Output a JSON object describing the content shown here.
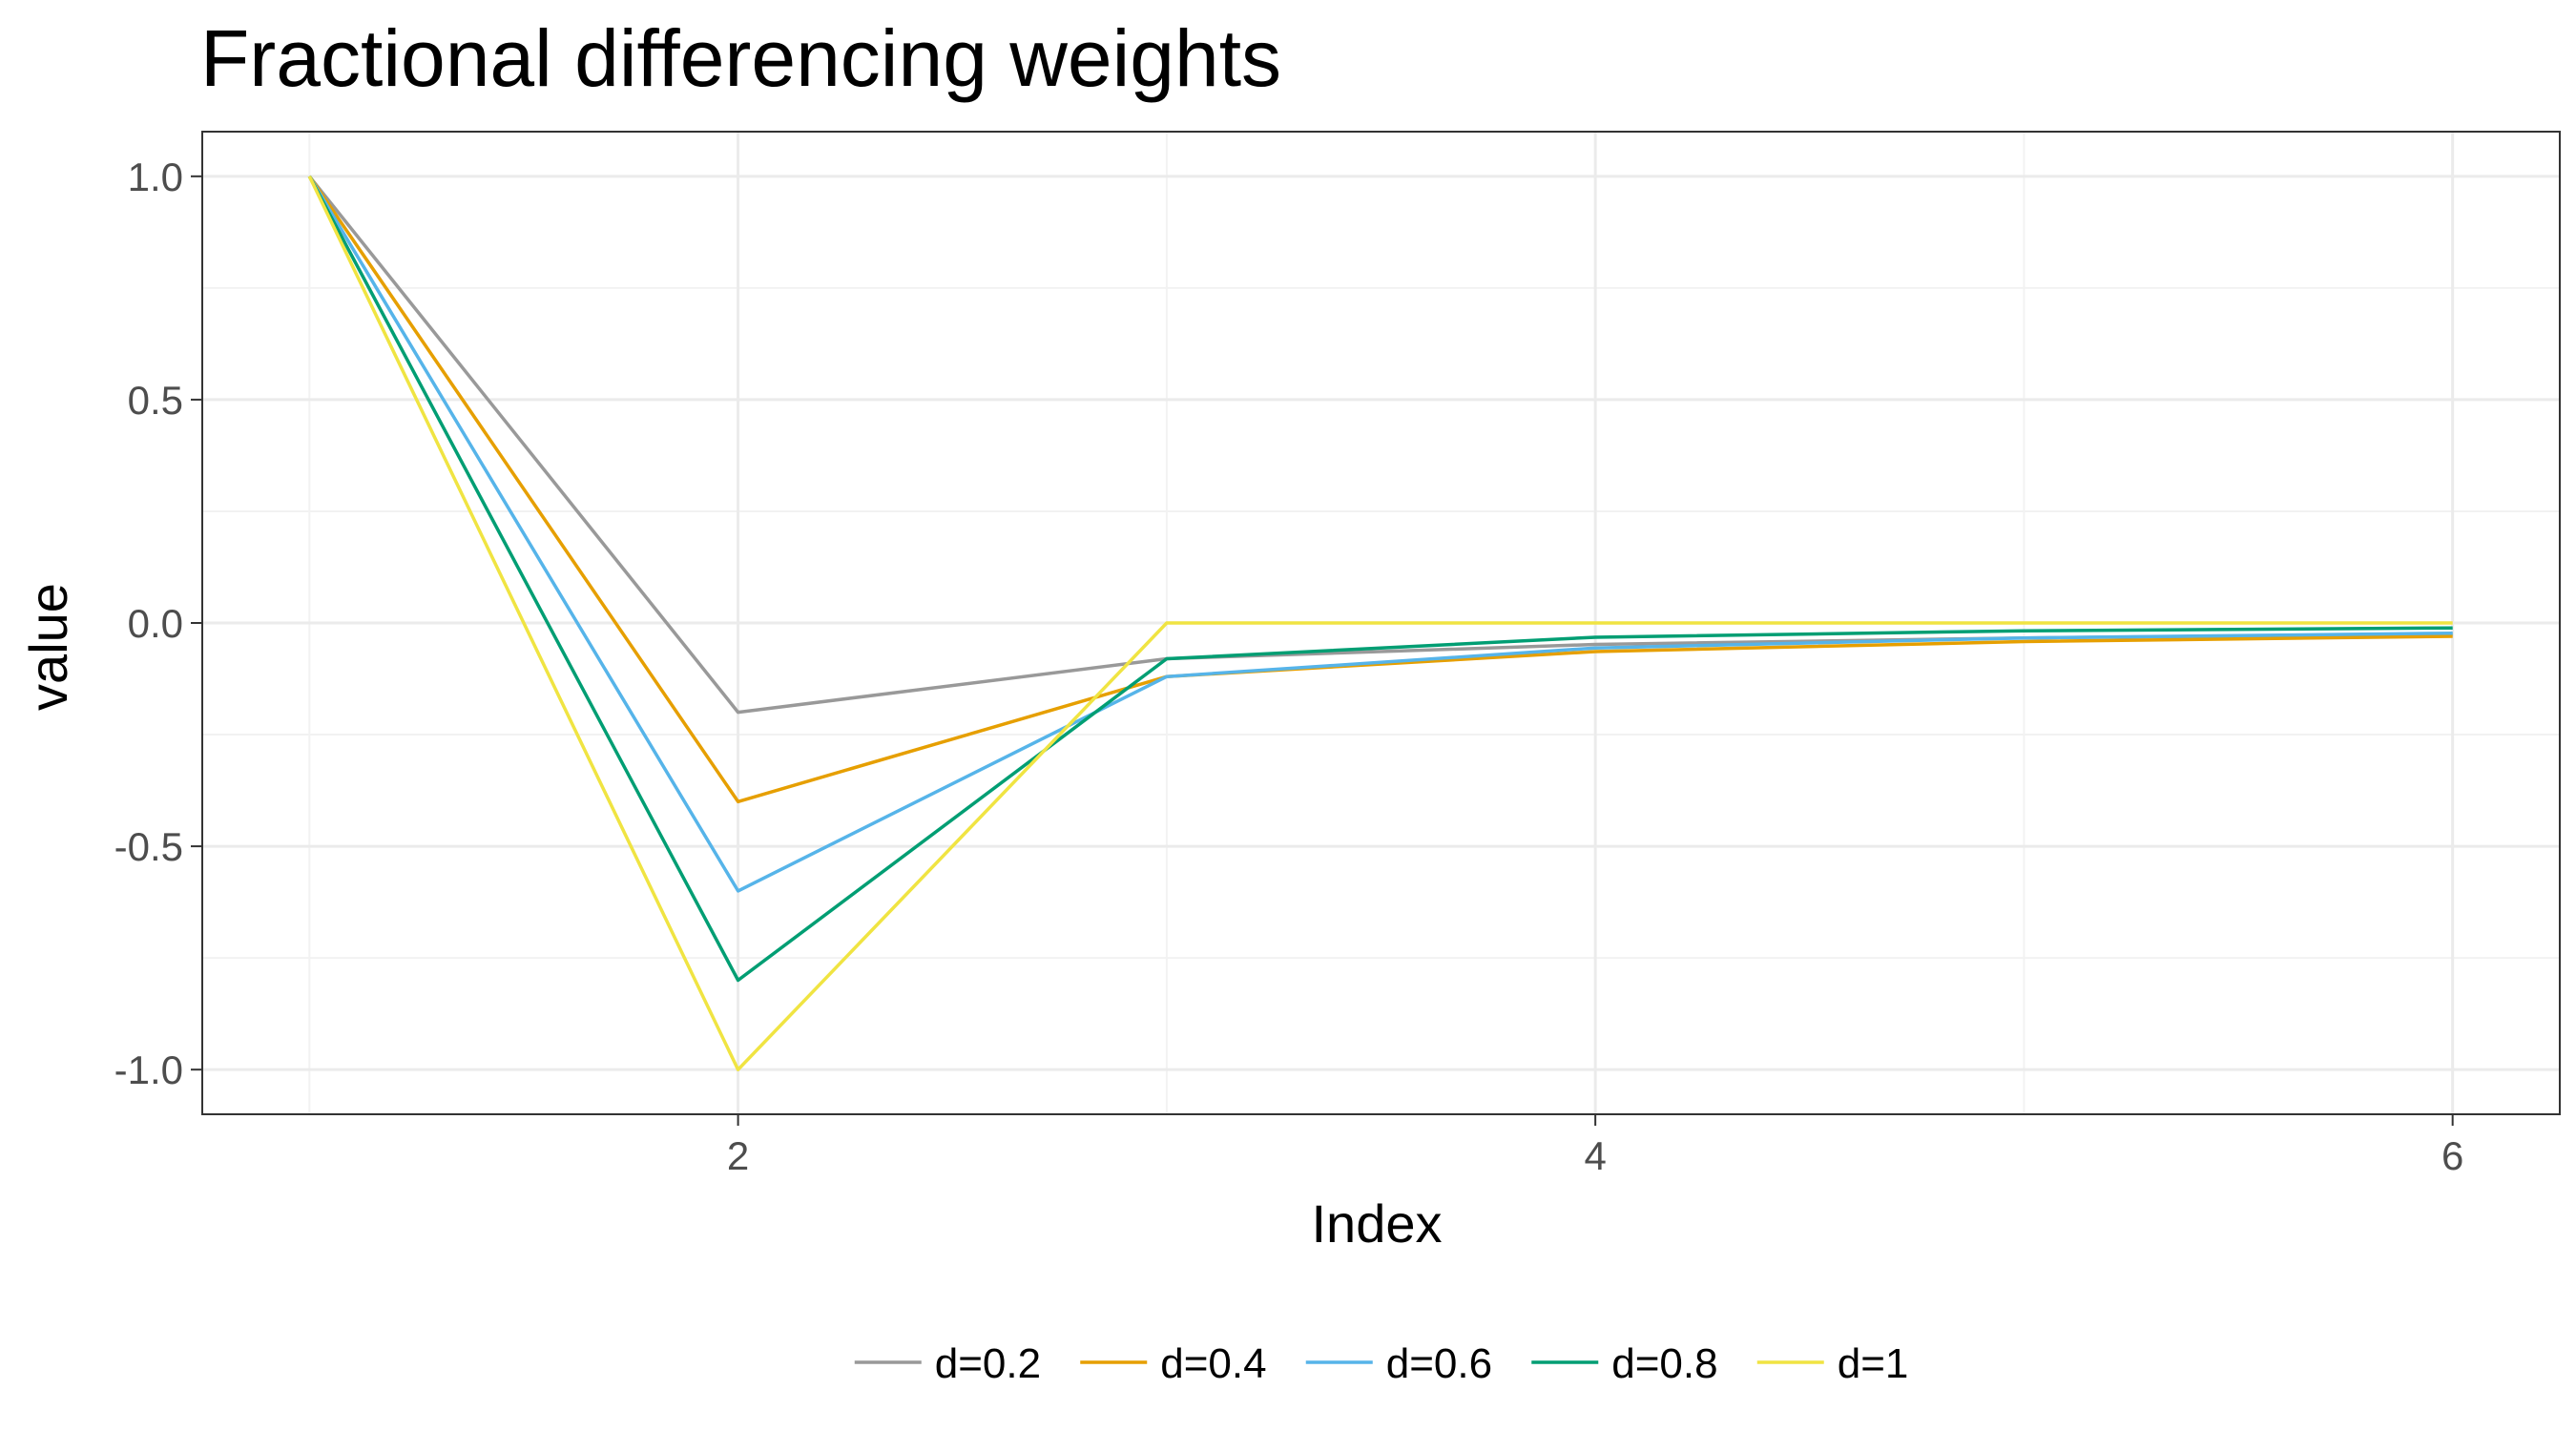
{
  "chart_data": {
    "type": "line",
    "title": "Fractional differencing weights",
    "xlabel": "Index",
    "ylabel": "value",
    "x": [
      1,
      2,
      3,
      4,
      5,
      6
    ],
    "xlim": [
      0.75,
      6.25
    ],
    "ylim": [
      -1.1,
      1.1
    ],
    "xticks": [
      2,
      4,
      6
    ],
    "xtick_labels": [
      "2",
      "4",
      "6"
    ],
    "yticks": [
      1.0,
      0.5,
      0.0,
      -0.5,
      -1.0
    ],
    "ytick_labels": [
      "1.0",
      "0.5",
      "0.0",
      "-0.5",
      "-1.0"
    ],
    "grid": true,
    "legend_position": "bottom",
    "series": [
      {
        "name": "d=0.2",
        "color": "#999999",
        "values": [
          1,
          -0.2,
          -0.08,
          -0.048,
          -0.0336,
          -0.0255
        ]
      },
      {
        "name": "d=0.4",
        "color": "#E69F00",
        "values": [
          1,
          -0.4,
          -0.12,
          -0.064,
          -0.0416,
          -0.03
        ]
      },
      {
        "name": "d=0.6",
        "color": "#56B4E9",
        "values": [
          1,
          -0.6,
          -0.12,
          -0.056,
          -0.0336,
          -0.0228
        ]
      },
      {
        "name": "d=0.8",
        "color": "#009E73",
        "values": [
          1,
          -0.8,
          -0.08,
          -0.032,
          -0.0176,
          -0.0112
        ]
      },
      {
        "name": "d=1",
        "color": "#F0E442",
        "values": [
          1,
          -1.0,
          0,
          0,
          0,
          0
        ]
      }
    ]
  }
}
